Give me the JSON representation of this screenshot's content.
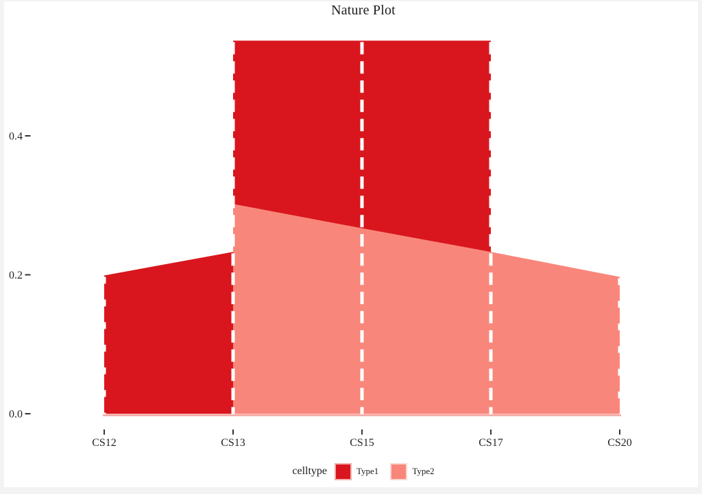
{
  "page": {
    "background": "#f3f3f3",
    "canvas_background": "#ffffff"
  },
  "chart_data": {
    "type": "area",
    "title": "Nature Plot",
    "x_categories": [
      "CS12",
      "CS13",
      "CS15",
      "CS17",
      "CS20"
    ],
    "y_ticks": [
      {
        "label": "0.0",
        "value": 0.0
      },
      {
        "label": "0.2",
        "value": 0.2
      },
      {
        "label": "0.4",
        "value": 0.4
      }
    ],
    "ylim": [
      0,
      0.555
    ],
    "grid": false,
    "legend_title": "celltype",
    "legend_position": "bottom",
    "baseline_color": "#F4A49C",
    "separator_lines": {
      "color": "#ffffff",
      "style": "dashed"
    },
    "series": [
      {
        "name": "Type1",
        "color": "#D9161D",
        "rim": "#F1AFAB",
        "segments": [
          {
            "x": [
              "CS12",
              "CS13"
            ],
            "top": [
              0.199,
              0.233
            ],
            "bottom": [
              0,
              0
            ]
          },
          {
            "x": [
              "CS13",
              "CS15",
              "CS17"
            ],
            "top": [
              0.537,
              0.537,
              0.537
            ],
            "bottom": [
              0,
              0,
              0
            ],
            "note": "drawn beneath Type2 area"
          }
        ]
      },
      {
        "name": "Type2",
        "color": "#F9867B",
        "rim": "#FBD5CE",
        "segments": [
          {
            "x": [
              "CS13",
              "CS15",
              "CS17",
              "CS20"
            ],
            "top": [
              0.302,
              0.267,
              0.233,
              0.197
            ],
            "bottom": [
              0,
              0,
              0,
              0
            ]
          }
        ]
      }
    ],
    "draw_order": [
      {
        "series": 0,
        "segment": 1
      },
      {
        "series": 0,
        "segment": 0
      },
      {
        "series": 1,
        "segment": 0
      }
    ]
  }
}
